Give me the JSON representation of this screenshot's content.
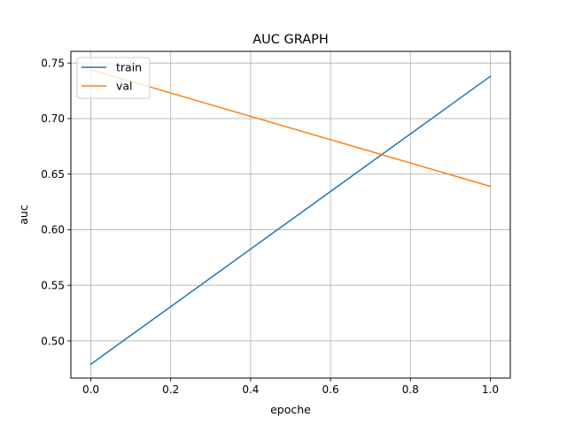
{
  "chart_data": {
    "type": "line",
    "title": "AUC GRAPH",
    "xlabel": "epoche",
    "ylabel": "auc",
    "xlim": [
      -0.05,
      1.05
    ],
    "ylim": [
      0.4665,
      0.7605
    ],
    "xticks": [
      0.0,
      0.2,
      0.4,
      0.6,
      0.8,
      1.0
    ],
    "xtick_labels": [
      "0.0",
      "0.2",
      "0.4",
      "0.6",
      "0.8",
      "1.0"
    ],
    "yticks": [
      0.5,
      0.55,
      0.6,
      0.65,
      0.7,
      0.75
    ],
    "ytick_labels": [
      "0.50",
      "0.55",
      "0.60",
      "0.65",
      "0.70",
      "0.75"
    ],
    "grid": true,
    "legend_position": "upper-left",
    "series": [
      {
        "name": "train",
        "color": "#1f77b4",
        "x": [
          0,
          1
        ],
        "y": [
          0.479,
          0.738
        ]
      },
      {
        "name": "val",
        "color": "#ff7f0e",
        "x": [
          0,
          1
        ],
        "y": [
          0.744,
          0.639
        ]
      }
    ]
  }
}
